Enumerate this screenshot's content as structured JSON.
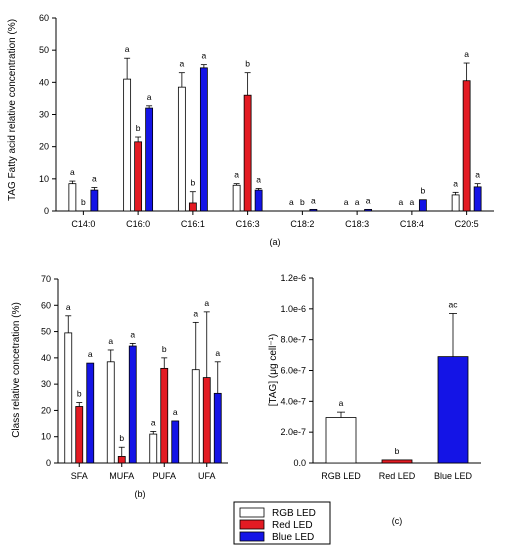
{
  "chart_data": [
    {
      "id": "a",
      "type": "bar",
      "panel_label": "(a)",
      "ylabel": "TAG Fatty acid relative concentration (%)",
      "ylim": [
        0,
        60
      ],
      "yticks": [
        "0",
        "10",
        "20",
        "30",
        "40",
        "50",
        "60"
      ],
      "categories": [
        "C14:0",
        "C16:0",
        "C16:1",
        "C16:3",
        "C18:2",
        "C18:3",
        "C18:4",
        "C20:5"
      ],
      "series": [
        {
          "name": "RGB LED",
          "values": [
            8.5,
            41,
            38.5,
            8,
            0,
            0,
            0,
            5
          ],
          "errors": [
            0.8,
            6.5,
            4.5,
            0.5,
            0,
            0,
            0,
            0.8
          ],
          "letters": [
            "a",
            "a",
            "a",
            "a",
            "a",
            "a",
            "a",
            "a"
          ]
        },
        {
          "name": "Red LED",
          "values": [
            0,
            21.5,
            2.5,
            36,
            0,
            0,
            0,
            40.5
          ],
          "errors": [
            0,
            1.5,
            3.5,
            7,
            0,
            0,
            0,
            5.5
          ],
          "letters": [
            "b",
            "b",
            "b",
            "b",
            "b",
            "a",
            "a",
            "a"
          ]
        },
        {
          "name": "Blue LED",
          "values": [
            6.5,
            32,
            44.5,
            6.5,
            0.5,
            0.5,
            3.5,
            7.5
          ],
          "errors": [
            0.8,
            0.7,
            1,
            0.5,
            0,
            0,
            0,
            1
          ],
          "letters": [
            "a",
            "a",
            "a",
            "a",
            "a",
            "a",
            "b",
            "a"
          ]
        }
      ]
    },
    {
      "id": "b",
      "type": "bar",
      "panel_label": "(b)",
      "ylabel": "Class relative concetration (%)",
      "ylim": [
        0,
        70
      ],
      "yticks": [
        "0",
        "10",
        "20",
        "30",
        "40",
        "50",
        "60",
        "70"
      ],
      "categories": [
        "SFA",
        "MUFA",
        "PUFA",
        "UFA"
      ],
      "series": [
        {
          "name": "RGB LED",
          "values": [
            49.5,
            38.5,
            11,
            35.5
          ],
          "errors": [
            6.5,
            4.5,
            1,
            18
          ],
          "letters": [
            "a",
            "a",
            "a",
            "a"
          ]
        },
        {
          "name": "Red LED",
          "values": [
            21.5,
            2.5,
            36,
            32.5
          ],
          "errors": [
            1.5,
            3.5,
            4,
            25
          ],
          "letters": [
            "b",
            "b",
            "b",
            "a"
          ]
        },
        {
          "name": "Blue LED",
          "values": [
            38,
            44.5,
            16,
            26.5
          ],
          "errors": [
            0,
            1,
            0,
            12
          ],
          "letters": [
            "a",
            "a",
            "a",
            "a"
          ]
        }
      ]
    },
    {
      "id": "c",
      "type": "bar",
      "panel_label": "(c)",
      "ylabel": "[TAG] (μg cell⁻¹)",
      "ylim": [
        0,
        1.2e-06
      ],
      "yticks": [
        "0.0",
        "2.0e-7",
        "4.0e-7",
        "6.0e-7",
        "8.0e-7",
        "1.0e-6",
        "1.2e-6"
      ],
      "categories": [
        "RGB LED",
        "Red LED",
        "Blue LED"
      ],
      "values": [
        2.95e-07,
        2e-08,
        6.9e-07
      ],
      "errors": [
        3.5e-08,
        0,
        2.8e-07
      ],
      "letters": [
        "a",
        "b",
        "ac"
      ],
      "colors": [
        "#ffffff",
        "#e31b23",
        "#1414e6"
      ]
    }
  ],
  "legend": {
    "items": [
      {
        "label": "RGB LED",
        "color": "#ffffff"
      },
      {
        "label": "Red LED",
        "color": "#e31b23"
      },
      {
        "label": "Blue LED",
        "color": "#1414e6"
      }
    ]
  },
  "colors": {
    "rgb": "#ffffff",
    "red": "#e31b23",
    "blue": "#1414e6"
  }
}
